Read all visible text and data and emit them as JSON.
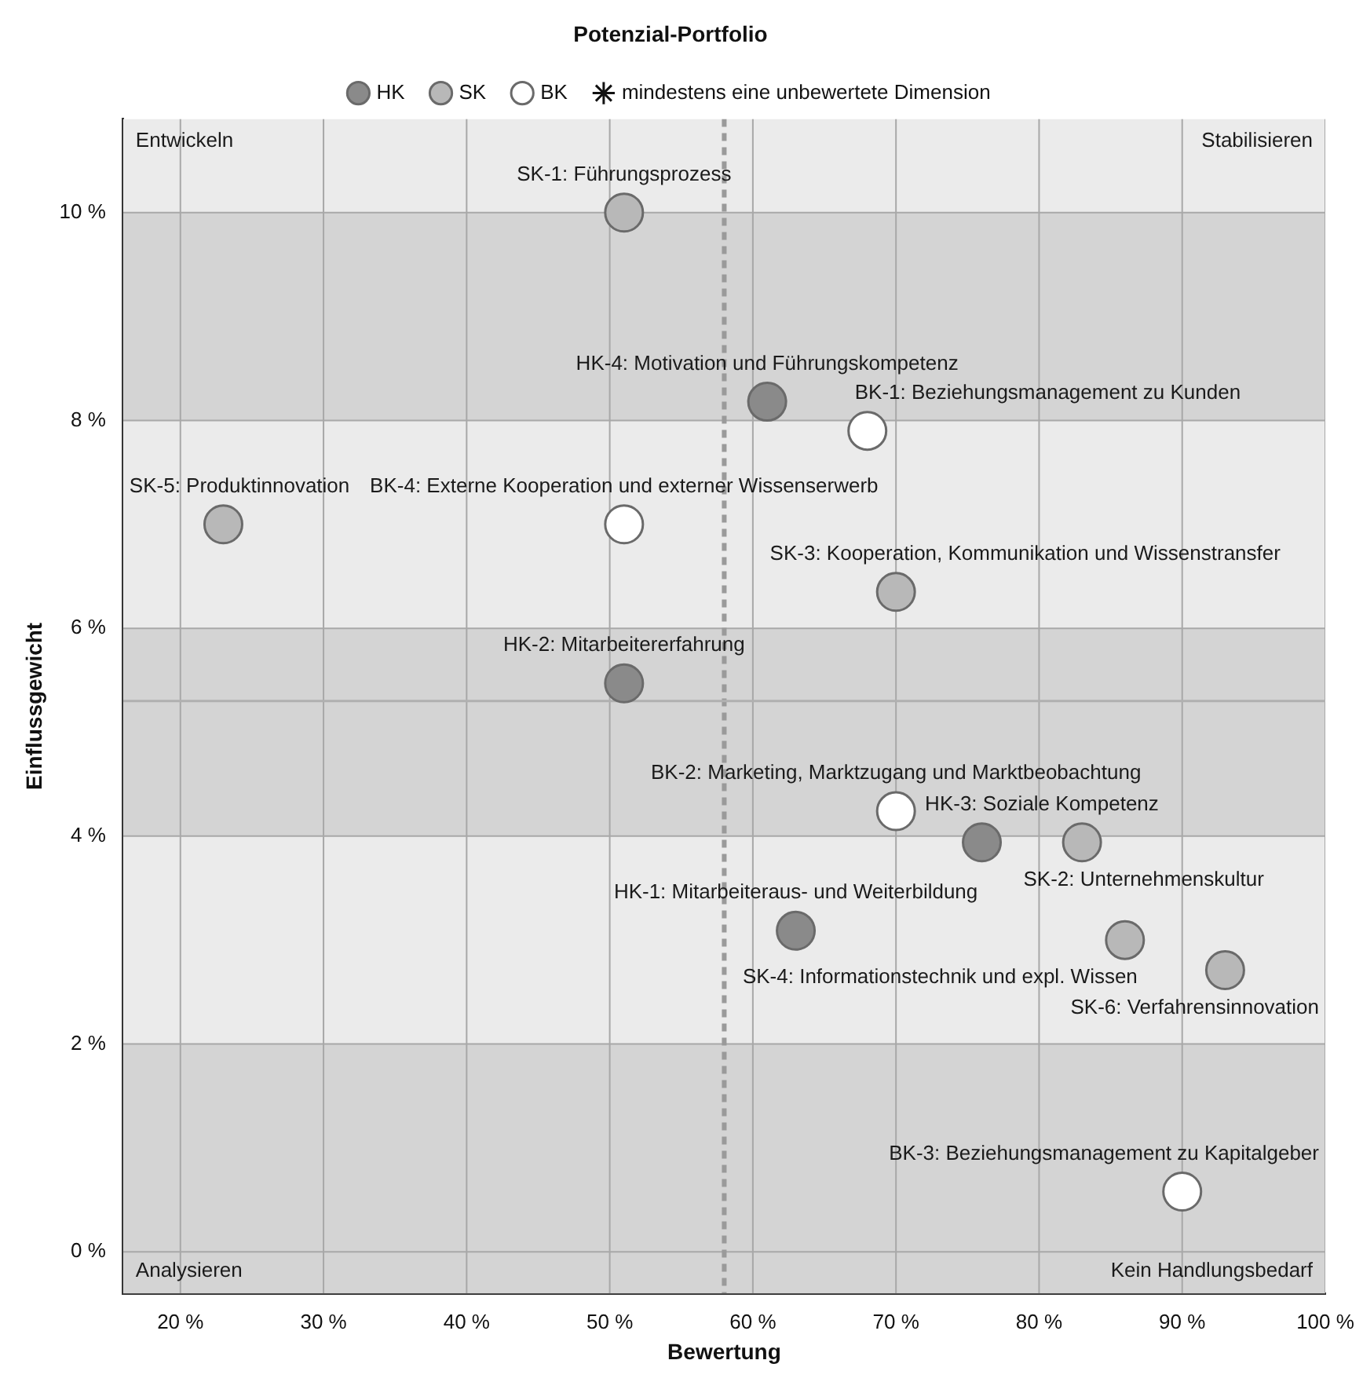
{
  "chart_data": {
    "type": "scatter",
    "title": "Potenzial-Portfolio",
    "xlabel": "Bewertung",
    "ylabel": "Einflussgewicht",
    "xlim": [
      16,
      100
    ],
    "ylim": [
      -0.4,
      10.9
    ],
    "xticks": [
      {
        "value": 20,
        "label": "20 %"
      },
      {
        "value": 30,
        "label": "30 %"
      },
      {
        "value": 40,
        "label": "40 %"
      },
      {
        "value": 50,
        "label": "50 %"
      },
      {
        "value": 60,
        "label": "60 %"
      },
      {
        "value": 70,
        "label": "70 %"
      },
      {
        "value": 80,
        "label": "80 %"
      },
      {
        "value": 90,
        "label": "90 %"
      },
      {
        "value": 100,
        "label": "100 %"
      }
    ],
    "yticks": [
      {
        "value": 0,
        "label": "0 %"
      },
      {
        "value": 2,
        "label": "2 %"
      },
      {
        "value": 4,
        "label": "4 %"
      },
      {
        "value": 6,
        "label": "6 %"
      },
      {
        "value": 8,
        "label": "8 %"
      },
      {
        "value": 10,
        "label": "10 %"
      }
    ],
    "grid": true,
    "legend": "top",
    "marker": "circle",
    "series": [
      {
        "name": "HK",
        "color": "#8a8a8a",
        "x": [
          63,
          51,
          76,
          61
        ],
        "values": [
          3.09,
          5.47,
          3.94,
          8.18
        ]
      },
      {
        "name": "SK",
        "color": "#b8b8b8",
        "x": [
          51,
          83,
          70,
          86,
          23,
          93
        ],
        "values": [
          10.0,
          3.94,
          6.35,
          3.0,
          7.0,
          2.71
        ]
      },
      {
        "name": "BK",
        "color": "#ffffff",
        "x": [
          68,
          70,
          90,
          51
        ],
        "values": [
          7.9,
          4.24,
          0.58,
          7.0
        ]
      },
      {
        "name": "mindestens eine unbewertete Dimension",
        "color": "#111111",
        "marker": "star"
      }
    ],
    "bands": [
      {
        "axis": "y",
        "from": -0.4,
        "to": 2,
        "color": "#d4d4d4"
      },
      {
        "axis": "y",
        "from": 4,
        "to": 6,
        "color": "#d4d4d4"
      },
      {
        "axis": "y",
        "from": 8,
        "to": 10,
        "color": "#d4d4d4"
      }
    ],
    "ref_lines": [
      {
        "axis": "x",
        "value": 58,
        "color": "#9a9a9a",
        "line_style": "dashed"
      },
      {
        "axis": "y",
        "value": 5.3,
        "color": "#b0b0b0"
      }
    ],
    "annotations": [
      "Entwickeln",
      "Stabilisieren",
      "Analysieren",
      "Kein Handlungsbedarf",
      {
        "text": "SK-1: Führungsprozess",
        "x": 51,
        "y": 10.0
      },
      {
        "text": "HK-2: Mitarbeitererfahrung",
        "x": 51,
        "y": 5.47
      },
      {
        "text": "HK-1: Mitarbeiteraus- und Weiterbildung",
        "x": 63,
        "y": 3.09
      },
      {
        "text": "SK-3: Kooperation, Kommunikation und Wissenstransfer",
        "x": 70,
        "y": 6.35
      },
      {
        "text": "HK-4: Motivation und Führungskompetenz",
        "x": 61,
        "y": 8.18
      },
      {
        "text": "BK-1: Beziehungsmanagement zu Kunden",
        "x": 68,
        "y": 7.9
      },
      {
        "text": "BK-4: Externe Kooperation und externer Wissenserwerb",
        "x": 51,
        "y": 7.0
      },
      {
        "text": "SK-5: Produktinnovation",
        "x": 23,
        "y": 7.0
      },
      {
        "text": "HK-3: Soziale Kompetenz",
        "x": 76,
        "y": 3.94
      },
      {
        "text": "SK-2: Unternehmenskultur",
        "x": 83,
        "y": 3.94
      },
      {
        "text": "BK-2: Marketing, Marktzugang und Marktbeobachtung",
        "x": 70,
        "y": 4.24
      },
      {
        "text": "SK-4: Informationstechnik und expl. Wissen",
        "x": 86,
        "y": 3.0
      },
      {
        "text": "SK-6: Verfahrensinnovation",
        "x": 93,
        "y": 2.71
      },
      {
        "text": "BK-3: Beziehungsmanagement zu Kapitalgeber",
        "x": 90,
        "y": 0.58
      }
    ]
  }
}
